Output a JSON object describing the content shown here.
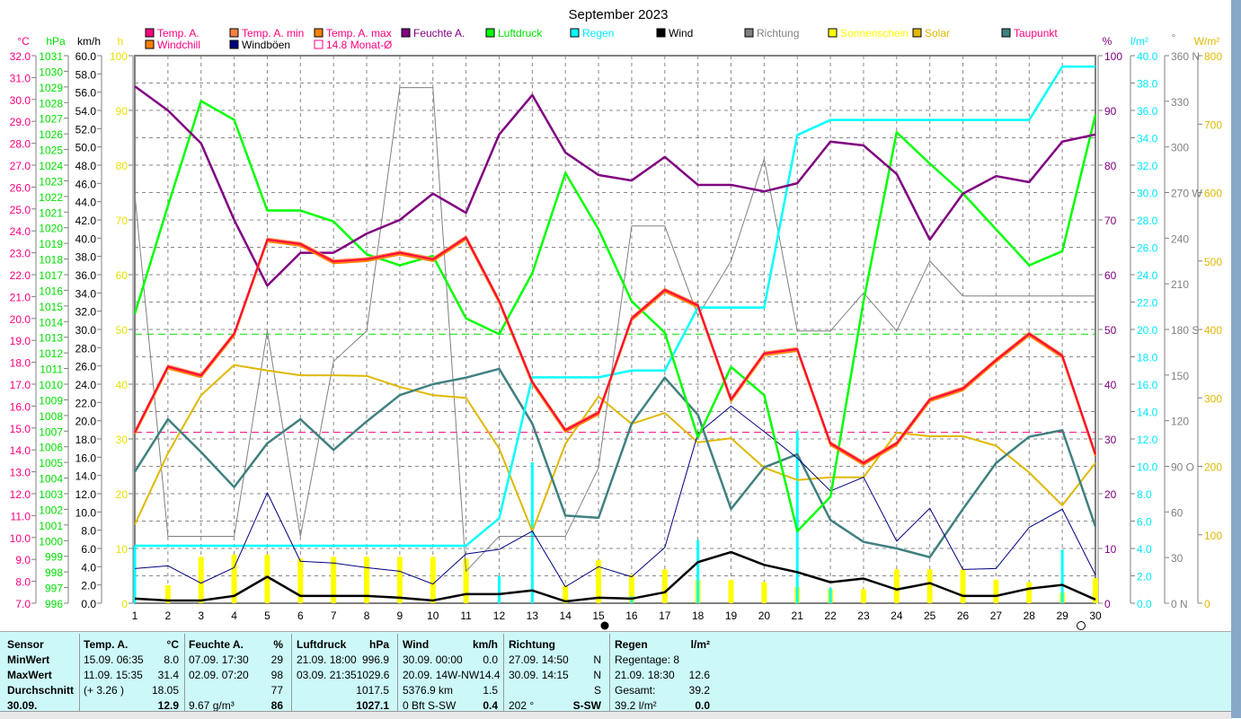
{
  "title": "September 2023",
  "legend": [
    {
      "label": "Temp. A.",
      "color": "#ff0080",
      "text": "#ff0080"
    },
    {
      "label": "Temp. A. min",
      "color": "#ff8040",
      "text": "#ff0080"
    },
    {
      "label": "Temp. A. max",
      "color": "#ff8000",
      "text": "#ff0080"
    },
    {
      "label": "Feuchte A.",
      "color": "#800080",
      "text": "#800080"
    },
    {
      "label": "Luftdruck",
      "color": "#00ff00",
      "text": "#00e000"
    },
    {
      "label": "Regen",
      "color": "#00ffff",
      "text": "#00e8ff"
    },
    {
      "label": "Wind",
      "color": "#000000",
      "text": "#000000"
    },
    {
      "label": "Richtung",
      "color": "#808080",
      "text": "#808080"
    },
    {
      "label": "Sonnenschein",
      "color": "#ffff00",
      "text": "#ffff00"
    },
    {
      "label": "Solar",
      "color": "#e0b800",
      "text": "#e0b800"
    },
    {
      "label": "Taupunkt",
      "color": "#408080",
      "text": "#ff0080"
    },
    {
      "label": "Windchill",
      "color": "#ff8000",
      "text": "#ff0080"
    },
    {
      "label": "Windböen",
      "color": "#000080",
      "text": "#000000"
    },
    {
      "label": "14.8 Monat-Ø",
      "color": "#ff0080",
      "text": "#ff0080"
    }
  ],
  "chart_data": {
    "type": "line",
    "title": "September 2023",
    "x": [
      1,
      2,
      3,
      4,
      5,
      6,
      7,
      8,
      9,
      10,
      11,
      12,
      13,
      14,
      15,
      16,
      17,
      18,
      19,
      20,
      21,
      22,
      23,
      24,
      25,
      26,
      27,
      28,
      29,
      30
    ],
    "axes": {
      "temp": {
        "unit": "°C",
        "range": [
          7,
          32
        ],
        "step": 1
      },
      "pressure": {
        "unit": "hPa",
        "range": [
          996,
          1031
        ],
        "step": 1
      },
      "wind": {
        "unit": "km/h",
        "range": [
          0,
          60
        ],
        "step": 2
      },
      "sun": {
        "unit": "h",
        "range": [
          0,
          100
        ],
        "step": 10
      },
      "humidity": {
        "unit": "%",
        "range": [
          0,
          100
        ],
        "step": 10
      },
      "rain": {
        "unit": "l/m²",
        "range": [
          0,
          40
        ],
        "step": 2
      },
      "direction": {
        "unit": "°",
        "range": [
          0,
          360
        ],
        "step": 30,
        "compass": {
          "0": "N",
          "90": "O",
          "180": "S",
          "270": "W",
          "360": "N"
        }
      },
      "solar": {
        "unit": "W/m²",
        "range": [
          0,
          800
        ],
        "step": 100
      }
    },
    "series": [
      {
        "name": "Temp. A.",
        "axis": "temp",
        "values": [
          14.8,
          17.8,
          17.4,
          19.3,
          23.6,
          23.4,
          22.6,
          22.7,
          23.0,
          22.7,
          23.7,
          20.8,
          17.1,
          14.9,
          15.7,
          20.0,
          21.3,
          20.6,
          16.3,
          18.4,
          18.6,
          14.3,
          13.4,
          14.3,
          16.3,
          16.8,
          18.1,
          19.3,
          18.3,
          13.8
        ]
      },
      {
        "name": "Feuchte A.",
        "axis": "humidity",
        "values": [
          94.4,
          90,
          84,
          70,
          58,
          64,
          64,
          67.5,
          70,
          74.8,
          71.3,
          85.6,
          92.8,
          82.3,
          78.2,
          77.2,
          81.5,
          76.4,
          76.4,
          75.2,
          76.7,
          84.3,
          83.6,
          78.4,
          66.4,
          74.8,
          78,
          76.9,
          84.3,
          85.6
        ]
      },
      {
        "name": "Luftdruck",
        "axis": "pressure",
        "values": [
          1014.5,
          1021.4,
          1028.1,
          1026.9,
          1021.1,
          1021.1,
          1020.4,
          1018.3,
          1017.6,
          1018.2,
          1014.2,
          1013.2,
          1017.1,
          1023.5,
          1019.9,
          1015.3,
          1013.3,
          1006.6,
          1011.1,
          1009.3,
          1000.6,
          1002.8,
          1015.3,
          1026.1,
          1024.1,
          1022.2,
          1019.9,
          1017.6,
          1018.5,
          1027.2
        ]
      },
      {
        "name": "Regen",
        "axis": "rain",
        "values": [
          4.2,
          4.2,
          4.2,
          4.2,
          4.2,
          4.2,
          4.2,
          4.2,
          4.2,
          4.2,
          4.2,
          6.2,
          16.5,
          16.5,
          16.5,
          17.0,
          17.0,
          21.6,
          21.6,
          21.6,
          34.2,
          35.3,
          35.3,
          35.3,
          35.3,
          35.3,
          35.3,
          35.3,
          39.2,
          39.2
        ]
      },
      {
        "name": "Regen täglich",
        "axis": "rain",
        "values": [
          4.2,
          0,
          0,
          0,
          0,
          0,
          0,
          0,
          0,
          0,
          0,
          2.0,
          10.3,
          0,
          0,
          0.5,
          0,
          4.6,
          0,
          0,
          12.6,
          1.1,
          0,
          0,
          0,
          0,
          0,
          0,
          3.9,
          0
        ]
      },
      {
        "name": "Wind",
        "axis": "wind",
        "values": [
          0.5,
          0.3,
          0.3,
          0.8,
          2.9,
          0.8,
          0.8,
          0.8,
          0.6,
          0.3,
          1.0,
          1.0,
          1.4,
          0.2,
          0.6,
          0.5,
          1.2,
          4.5,
          5.6,
          4.2,
          3.4,
          2.3,
          2.7,
          1.5,
          2.2,
          0.8,
          0.8,
          1.6,
          2.0,
          0.4
        ]
      },
      {
        "name": "Windböen",
        "axis": "wind",
        "values": [
          3.8,
          4.1,
          2.2,
          3.9,
          12.1,
          4.6,
          4.4,
          3.9,
          3.5,
          2.1,
          5.4,
          5.9,
          7.9,
          1.8,
          4.0,
          2.9,
          6.1,
          18.6,
          21.6,
          18.8,
          15.9,
          12.3,
          13.8,
          6.8,
          10.4,
          3.7,
          3.8,
          8.3,
          10.3,
          3.1
        ]
      },
      {
        "name": "Richtung",
        "axis": "direction",
        "values": [
          269,
          44,
          44,
          44,
          179,
          44,
          159,
          179,
          339,
          339,
          21,
          44,
          44,
          44,
          89,
          248,
          248,
          189,
          225,
          292,
          179,
          179,
          204,
          179,
          225,
          202,
          202,
          202,
          202,
          202
        ]
      },
      {
        "name": "Sonnenschein",
        "axis": "sun",
        "values": [
          0,
          3.3,
          8.5,
          8.9,
          8.9,
          8.2,
          8.5,
          8.5,
          8.5,
          8.5,
          8.2,
          0,
          0,
          3.3,
          7.9,
          5.2,
          6.2,
          4.3,
          4.3,
          3.9,
          3.0,
          2.6,
          2.6,
          6.2,
          6.2,
          6.2,
          4.3,
          3.9,
          2.0,
          4.6
        ]
      },
      {
        "name": "Solar",
        "axis": "solar",
        "values": [
          115,
          219,
          304,
          348,
          340,
          333,
          333,
          332,
          316,
          304,
          300,
          226,
          105,
          233,
          302,
          262,
          278,
          235,
          241,
          198,
          180,
          184,
          184,
          249,
          244,
          244,
          230,
          191,
          143,
          205
        ]
      },
      {
        "name": "Taupunkt",
        "axis": "temp",
        "values": [
          13.0,
          15.4,
          13.9,
          12.3,
          14.3,
          15.4,
          14.0,
          15.3,
          16.5,
          17.0,
          17.3,
          17.7,
          15.2,
          11.0,
          10.9,
          15.2,
          17.3,
          15.6,
          11.3,
          13.2,
          13.8,
          10.8,
          9.8,
          9.5,
          9.1,
          11.3,
          13.4,
          14.6,
          14.9,
          10.5
        ]
      }
    ],
    "reference_lines": [
      {
        "name": "Monat-Ø",
        "axis": "temp",
        "value": 14.8
      },
      {
        "name": "Luftdruck-Ref",
        "axis": "pressure",
        "value": 1013.2
      }
    ],
    "moon": {
      "new": 15,
      "full": 30
    }
  },
  "table": {
    "columns": [
      {
        "head": "Temp. A.",
        "unit": "°C",
        "rows": [
          [
            "15.09.  06:35",
            "8.0"
          ],
          [
            "11.09.  15:35",
            "31.4"
          ],
          [
            "(+ 3.26 )",
            "18.05"
          ],
          [
            "",
            "12.9"
          ]
        ]
      },
      {
        "head": "Feuchte A.",
        "unit": "%",
        "rows": [
          [
            "07.09.  17:30",
            "29"
          ],
          [
            "02.09.  07:20",
            "98"
          ],
          [
            "",
            "77"
          ],
          [
            "9.67 g/m³",
            "86"
          ]
        ]
      },
      {
        "head": "Luftdruck",
        "unit": "hPa",
        "rows": [
          [
            "21.09.  18:00",
            "996.9"
          ],
          [
            "03.09.  21:35",
            "1029.6"
          ],
          [
            "",
            "1017.5"
          ],
          [
            "",
            "1027.1"
          ]
        ]
      },
      {
        "head": "Wind",
        "unit": "km/h",
        "rows": [
          [
            "30.09.  00:00",
            "0.0"
          ],
          [
            "20.09.  14W-NW",
            "14.4"
          ],
          [
            "5376.9 km",
            "1.5"
          ],
          [
            "0 Bft S-SW",
            "0.4"
          ]
        ]
      },
      {
        "head": "Richtung",
        "unit": "",
        "rows": [
          [
            "27.09.  14:50",
            "N"
          ],
          [
            "30.09.  14:15",
            "N"
          ],
          [
            "",
            "S"
          ],
          [
            "202 °",
            "S-SW"
          ]
        ]
      },
      {
        "head": "Regen",
        "unit": "l/m²",
        "rows": [
          [
            "Regentage: 8",
            ""
          ],
          [
            "21.09.  18:30",
            "12.6"
          ],
          [
            "Gesamt:",
            "39.2"
          ],
          [
            "39.2 l/m²",
            "0.0"
          ]
        ]
      }
    ],
    "labels": [
      "Sensor",
      "MinWert",
      "MaxWert",
      "Durchschnitt",
      "30.09."
    ]
  }
}
